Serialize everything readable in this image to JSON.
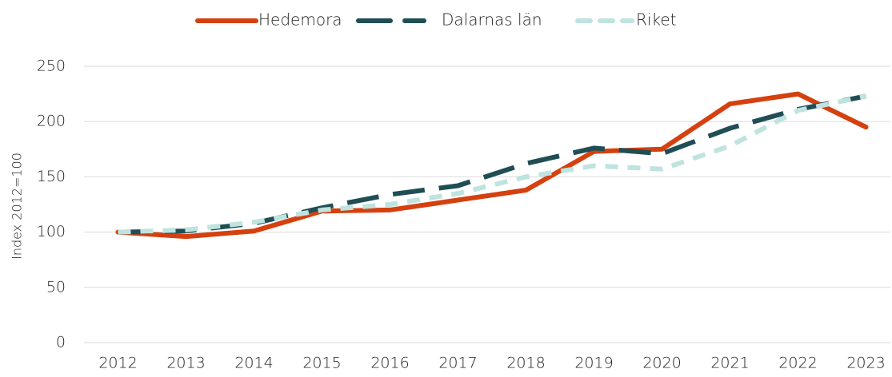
{
  "chart_data": {
    "type": "line",
    "y_label": "Index 2012=100",
    "categories": [
      "2012",
      "2013",
      "2014",
      "2015",
      "2016",
      "2017",
      "2018",
      "2019",
      "2020",
      "2021",
      "2022",
      "2023"
    ],
    "series": [
      {
        "name": "Hedemora",
        "color": "#d5400f",
        "dash": "solid",
        "values": [
          100,
          96,
          101,
          119,
          120,
          129,
          138,
          173,
          175,
          216,
          225,
          195
        ]
      },
      {
        "name": "Dalarnas län",
        "color": "#1f4e55",
        "dash": "long",
        "values": [
          100,
          101,
          108,
          122,
          134,
          142,
          162,
          176,
          171,
          194,
          211,
          223
        ]
      },
      {
        "name": "Riket",
        "color": "#bfe3df",
        "dash": "short",
        "values": [
          100,
          102,
          109,
          120,
          125,
          135,
          150,
          160,
          157,
          178,
          210,
          223
        ]
      }
    ],
    "ylim": [
      0,
      250
    ],
    "yticks": [
      0,
      50,
      100,
      150,
      200,
      250
    ],
    "grid": true,
    "legend": "top"
  }
}
